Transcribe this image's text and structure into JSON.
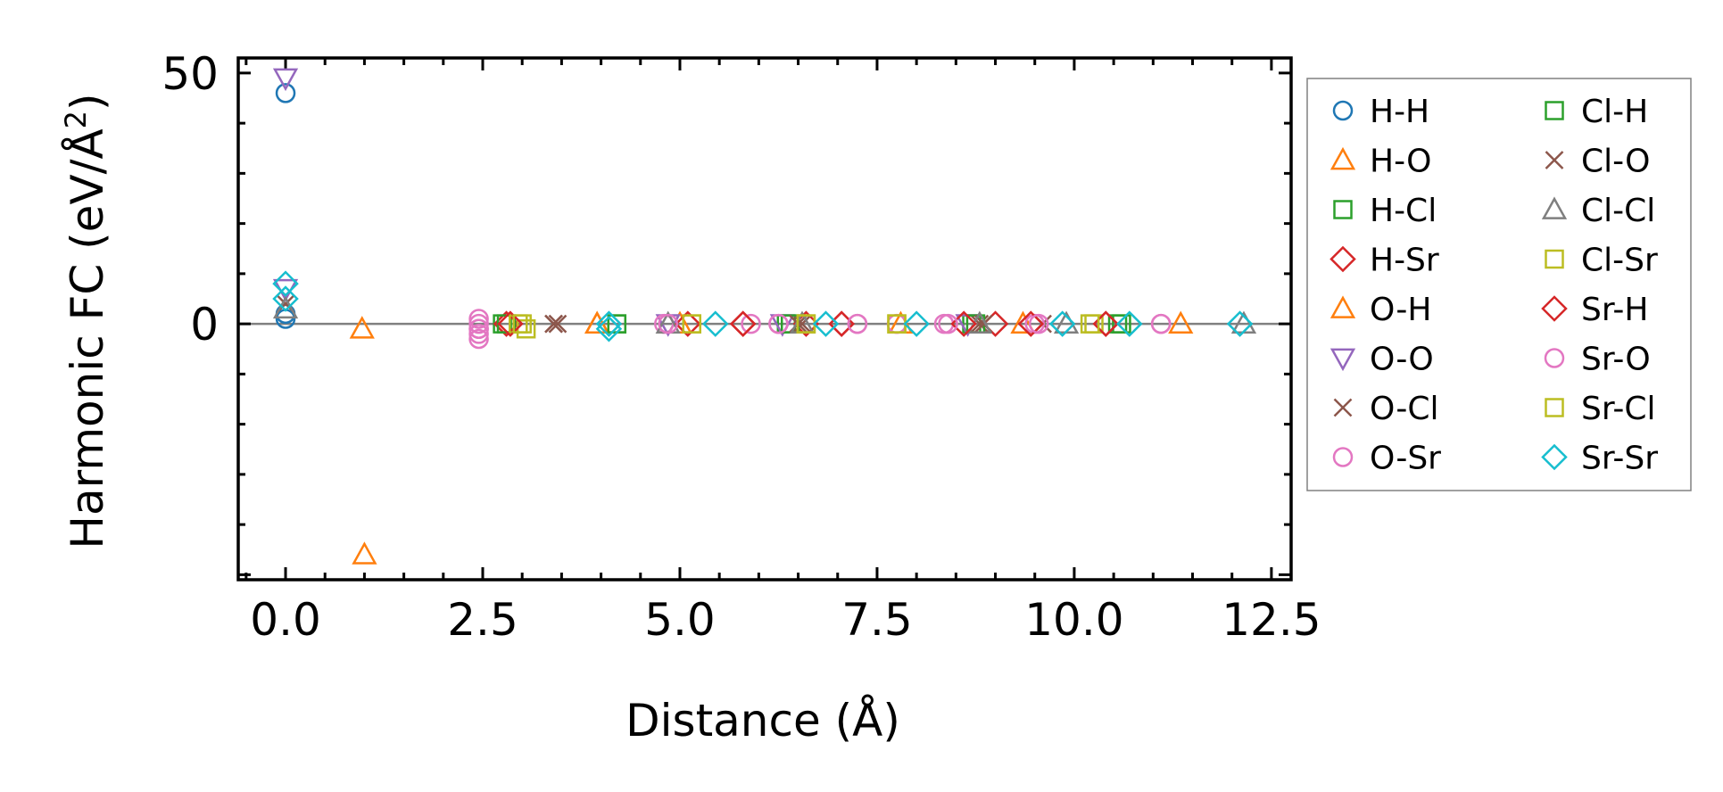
{
  "chart_data": {
    "type": "scatter",
    "xlabel": "Distance (Å)",
    "ylabel_main": "Harmonic FC (eV/Å",
    "ylabel_sup": "2",
    "ylabel_end": ")",
    "xlim": [
      -0.6,
      12.75
    ],
    "ylim": [
      -51,
      53
    ],
    "xticks": [
      0.0,
      2.5,
      5.0,
      7.5,
      10.0,
      12.5
    ],
    "xtick_labels": [
      "0.0",
      "2.5",
      "5.0",
      "7.5",
      "10.0",
      "12.5"
    ],
    "yticks": [
      0,
      50
    ],
    "ytick_labels": [
      "0",
      "50"
    ],
    "grid": false,
    "zero_line": true,
    "legend_location": "outside right",
    "series": [
      {
        "name": "H-H",
        "color": "#1f77b4",
        "marker": "circle",
        "x": [
          0.0,
          0.0,
          0.0
        ],
        "y": [
          46,
          2,
          1
        ]
      },
      {
        "name": "H-O",
        "color": "#ff7f0e",
        "marker": "triangle-up",
        "x": [
          0.97,
          3.95,
          11.35
        ],
        "y": [
          -1,
          0,
          0
        ]
      },
      {
        "name": "H-Cl",
        "color": "#2ca02c",
        "marker": "square",
        "x": [
          2.75,
          4.2,
          6.35,
          8.7,
          10.6
        ],
        "y": [
          0,
          0,
          0,
          0,
          0
        ]
      },
      {
        "name": "H-Sr",
        "color": "#d62728",
        "marker": "diamond",
        "x": [
          2.8,
          5.8,
          6.6,
          7.05,
          9.0,
          10.4
        ],
        "y": [
          0,
          0,
          0,
          0,
          0,
          0
        ]
      },
      {
        "name": "O-H",
        "color": "#ff7f0e",
        "marker": "triangle-up",
        "x": [
          1.0,
          3.95,
          5.0,
          7.8,
          9.35
        ],
        "y": [
          -46,
          0,
          0,
          0,
          0
        ]
      },
      {
        "name": "O-O",
        "color": "#9467bd",
        "marker": "triangle-down",
        "x": [
          0.0,
          0.0,
          4.85,
          6.3,
          8.65
        ],
        "y": [
          49,
          7,
          0,
          0,
          0
        ]
      },
      {
        "name": "O-Cl",
        "color": "#8c564b",
        "marker": "x",
        "x": [
          0.0,
          3.4,
          3.45,
          6.55,
          8.8,
          9.6
        ],
        "y": [
          4,
          0,
          0,
          0,
          0,
          0
        ]
      },
      {
        "name": "O-Sr",
        "color": "#e377c2",
        "marker": "circle",
        "x": [
          2.45,
          2.45,
          2.45,
          2.45,
          2.45,
          4.8,
          5.9,
          6.25,
          7.25,
          7.75,
          8.35,
          9.5,
          11.1
        ],
        "y": [
          1,
          0,
          -1,
          -2,
          -3,
          0,
          0,
          0,
          0,
          0,
          0,
          0,
          0
        ]
      },
      {
        "name": "Cl-H",
        "color": "#2ca02c",
        "marker": "square",
        "x": [
          2.8,
          4.2,
          6.4,
          8.75,
          10.55
        ],
        "y": [
          0,
          0,
          0,
          0,
          0
        ]
      },
      {
        "name": "Cl-O",
        "color": "#8c564b",
        "marker": "x",
        "x": [
          3.4,
          6.5,
          8.85
        ],
        "y": [
          0,
          0,
          0
        ]
      },
      {
        "name": "Cl-Cl",
        "color": "#7f7f7f",
        "marker": "triangle-up",
        "x": [
          0.0,
          4.85,
          6.55,
          8.8,
          9.9,
          12.15
        ],
        "y": [
          3,
          0,
          0,
          0,
          0,
          0
        ]
      },
      {
        "name": "Cl-Sr",
        "color": "#bcbd22",
        "marker": "square",
        "x": [
          2.95,
          3.05,
          5.15,
          6.6,
          7.75,
          10.25
        ],
        "y": [
          0,
          -1,
          0,
          0,
          0,
          0
        ]
      },
      {
        "name": "Sr-H",
        "color": "#d62728",
        "marker": "diamond",
        "x": [
          2.85,
          5.1,
          5.8,
          7.05,
          8.6,
          9.45,
          10.4
        ],
        "y": [
          0,
          0,
          0,
          0,
          0,
          0,
          0
        ]
      },
      {
        "name": "Sr-O",
        "color": "#e377c2",
        "marker": "circle",
        "x": [
          2.45,
          4.85,
          6.25,
          7.25,
          8.4,
          9.55,
          11.1
        ],
        "y": [
          -1,
          0,
          0,
          0,
          0,
          0,
          0
        ]
      },
      {
        "name": "Sr-Cl",
        "color": "#bcbd22",
        "marker": "square",
        "x": [
          3.0,
          5.15,
          6.6,
          7.75,
          10.2
        ],
        "y": [
          0,
          0,
          0,
          0,
          0
        ]
      },
      {
        "name": "Sr-Sr",
        "color": "#17becf",
        "marker": "diamond",
        "x": [
          0.0,
          0.0,
          4.1,
          4.1,
          5.45,
          6.85,
          8.0,
          9.85,
          10.7,
          12.1
        ],
        "y": [
          8,
          5,
          0,
          -1,
          0,
          0,
          0,
          0,
          0,
          0
        ]
      }
    ]
  }
}
